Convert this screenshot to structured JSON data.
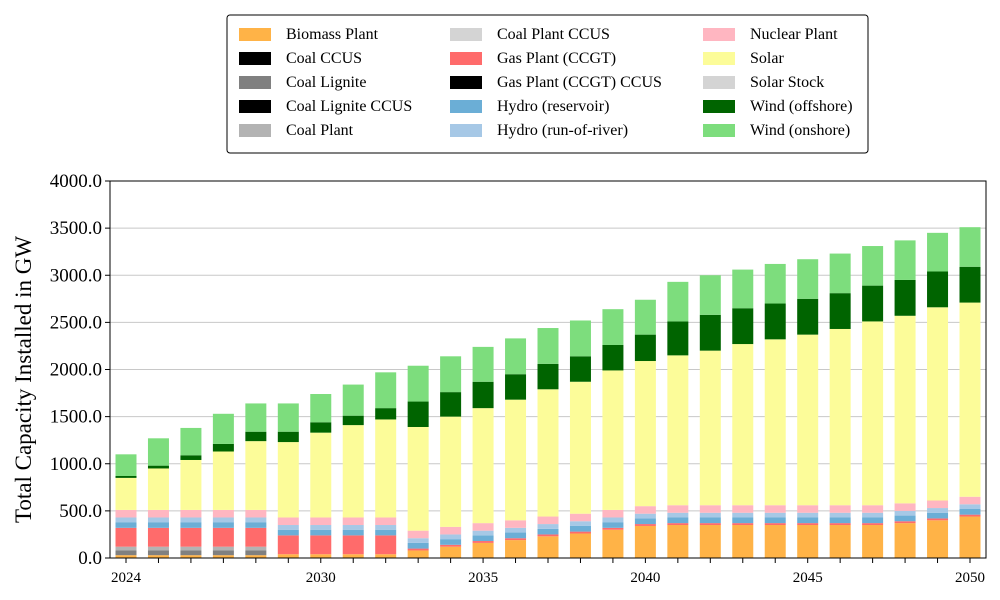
{
  "chart_data": {
    "type": "bar",
    "stacked": true,
    "ylabel": "Total Capacity Installed in GW",
    "xlabel": "",
    "ylim": [
      0,
      4000
    ],
    "y_ticks": [
      "0.0",
      "500.0",
      "1000.0",
      "1500.0",
      "2000.0",
      "2500.0",
      "3000.0",
      "3500.0",
      "4000.0"
    ],
    "x_tick_labels": [
      "2024",
      "2030",
      "2035",
      "2040",
      "2045",
      "2050"
    ],
    "grid": "horizontal",
    "legend_position": "top-center",
    "categories": [
      2024,
      2025,
      2026,
      2027,
      2028,
      2029,
      2030,
      2031,
      2032,
      2033,
      2034,
      2035,
      2036,
      2037,
      2038,
      2039,
      2040,
      2041,
      2042,
      2043,
      2044,
      2045,
      2046,
      2047,
      2048,
      2049,
      2050
    ],
    "series": [
      {
        "name": "Biomass Plant",
        "color": "#ffb347",
        "values": [
          30,
          30,
          30,
          30,
          30,
          40,
          40,
          40,
          40,
          80,
          120,
          160,
          190,
          230,
          260,
          300,
          340,
          350,
          350,
          350,
          350,
          350,
          350,
          350,
          370,
          400,
          440
        ]
      },
      {
        "name": "Coal CCUS",
        "color": "#000000",
        "values": [
          0,
          0,
          0,
          0,
          0,
          0,
          0,
          0,
          0,
          0,
          0,
          0,
          0,
          0,
          0,
          0,
          0,
          0,
          0,
          0,
          0,
          0,
          0,
          0,
          0,
          0,
          0
        ]
      },
      {
        "name": "Coal Lignite",
        "color": "#808080",
        "values": [
          50,
          50,
          50,
          50,
          50,
          0,
          0,
          0,
          0,
          0,
          0,
          0,
          0,
          0,
          0,
          0,
          0,
          0,
          0,
          0,
          0,
          0,
          0,
          0,
          0,
          0,
          0
        ]
      },
      {
        "name": "Coal Lignite CCUS",
        "color": "#000000",
        "values": [
          0,
          0,
          0,
          0,
          0,
          0,
          0,
          0,
          0,
          0,
          0,
          0,
          0,
          0,
          0,
          0,
          0,
          0,
          0,
          0,
          0,
          0,
          0,
          0,
          0,
          0,
          0
        ]
      },
      {
        "name": "Coal Plant",
        "color": "#b3b3b3",
        "values": [
          40,
          40,
          40,
          40,
          40,
          0,
          0,
          0,
          0,
          0,
          0,
          0,
          0,
          0,
          0,
          0,
          0,
          0,
          0,
          0,
          0,
          0,
          0,
          0,
          0,
          0,
          0
        ]
      },
      {
        "name": "Coal Plant CCUS",
        "color": "#d4d4d4",
        "values": [
          0,
          0,
          0,
          0,
          0,
          0,
          0,
          0,
          0,
          0,
          0,
          0,
          0,
          0,
          0,
          0,
          0,
          0,
          0,
          0,
          0,
          0,
          0,
          0,
          0,
          0,
          0
        ]
      },
      {
        "name": "Gas Plant (CCGT)",
        "color": "#ff6b6b",
        "values": [
          200,
          200,
          200,
          200,
          200,
          200,
          200,
          200,
          200,
          20,
          20,
          20,
          20,
          20,
          20,
          20,
          20,
          20,
          20,
          20,
          20,
          20,
          20,
          20,
          20,
          20,
          20
        ]
      },
      {
        "name": "Gas Plant (CCGT) CCUS",
        "color": "#000000",
        "values": [
          0,
          0,
          0,
          0,
          0,
          0,
          0,
          0,
          0,
          0,
          0,
          0,
          0,
          0,
          0,
          0,
          0,
          0,
          0,
          0,
          0,
          0,
          0,
          0,
          0,
          0,
          0
        ]
      },
      {
        "name": "Hydro (reservoir)",
        "color": "#6baed6",
        "values": [
          60,
          60,
          60,
          60,
          60,
          60,
          60,
          60,
          60,
          60,
          60,
          60,
          60,
          60,
          60,
          60,
          60,
          60,
          60,
          60,
          60,
          60,
          60,
          60,
          60,
          60,
          60
        ]
      },
      {
        "name": "Hydro (run-of-river)",
        "color": "#a6c8e6",
        "values": [
          50,
          50,
          50,
          50,
          50,
          50,
          50,
          50,
          50,
          50,
          50,
          50,
          50,
          50,
          50,
          50,
          50,
          50,
          50,
          50,
          50,
          50,
          50,
          50,
          50,
          50,
          50
        ]
      },
      {
        "name": "Nuclear Plant",
        "color": "#ffb6c1",
        "values": [
          80,
          80,
          80,
          80,
          80,
          80,
          80,
          80,
          80,
          80,
          80,
          80,
          80,
          80,
          80,
          80,
          80,
          80,
          80,
          80,
          80,
          80,
          80,
          80,
          80,
          80,
          80
        ]
      },
      {
        "name": "Solar",
        "color": "#fcfc99",
        "values": [
          340,
          440,
          530,
          620,
          730,
          800,
          900,
          980,
          1040,
          1100,
          1170,
          1220,
          1280,
          1350,
          1400,
          1480,
          1540,
          1590,
          1640,
          1710,
          1760,
          1810,
          1870,
          1950,
          1990,
          2050,
          2060
        ]
      },
      {
        "name": "Solar Stock",
        "color": "#d4d4d4",
        "values": [
          0,
          0,
          0,
          0,
          0,
          0,
          0,
          0,
          0,
          0,
          0,
          0,
          0,
          0,
          0,
          0,
          0,
          0,
          0,
          0,
          0,
          0,
          0,
          0,
          0,
          0,
          0
        ]
      },
      {
        "name": "Wind (offshore)",
        "color": "#006400",
        "values": [
          20,
          30,
          50,
          80,
          100,
          110,
          110,
          100,
          120,
          270,
          260,
          280,
          270,
          270,
          270,
          270,
          280,
          360,
          380,
          380,
          380,
          380,
          380,
          380,
          380,
          380,
          380
        ]
      },
      {
        "name": "Wind (onshore)",
        "color": "#7ddd7d",
        "values": [
          230,
          290,
          290,
          320,
          300,
          300,
          300,
          330,
          380,
          380,
          380,
          370,
          380,
          380,
          380,
          380,
          370,
          420,
          420,
          410,
          420,
          420,
          420,
          420,
          420,
          410,
          420
        ]
      }
    ]
  }
}
